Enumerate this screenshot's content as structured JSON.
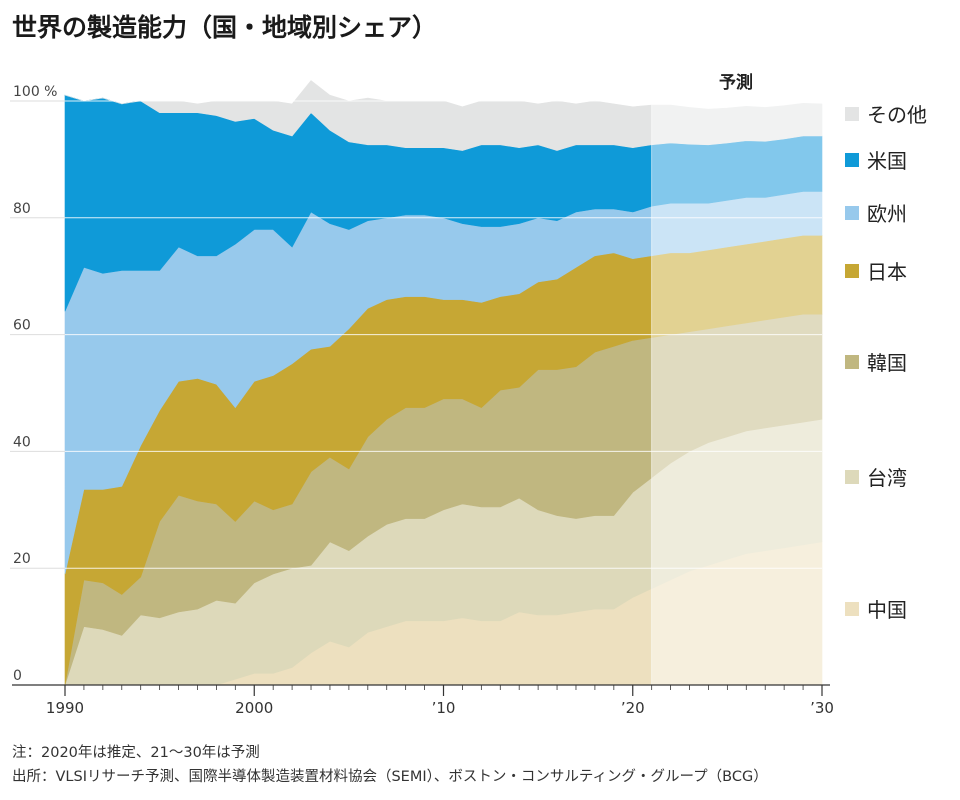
{
  "title": "世界の製造能力（国・地域別シェア）",
  "notes": {
    "note": "注：2020年は推定、21～30年は予測",
    "source": "出所：VLSIリサーチ予測、国際半導体製造装置材料協会（SEMI）、ボストン・コンサルティング・グループ（BCG）"
  },
  "chart_data": {
    "type": "area",
    "stacked": true,
    "title": "世界の製造能力（国・地域別シェア）",
    "ylim": [
      0,
      100
    ],
    "xlim": [
      1990,
      2030
    ],
    "y_ticks": [
      {
        "value": 0,
        "label": "0"
      },
      {
        "value": 20,
        "label": "20"
      },
      {
        "value": 40,
        "label": "40"
      },
      {
        "value": 60,
        "label": "60"
      },
      {
        "value": 80,
        "label": "80"
      },
      {
        "value": 100,
        "label": "100 %"
      }
    ],
    "x_ticks": [
      {
        "value": 1990,
        "label": "1990"
      },
      {
        "value": 2000,
        "label": "2000"
      },
      {
        "value": 2010,
        "label": "’10"
      },
      {
        "value": 2020,
        "label": "’20"
      },
      {
        "value": 2030,
        "label": "’30"
      }
    ],
    "forecast": {
      "label": "予測",
      "start": 2021,
      "end": 2030
    },
    "x": [
      1990,
      1991,
      1992,
      1993,
      1994,
      1995,
      1996,
      1997,
      1998,
      1999,
      2000,
      2001,
      2002,
      2003,
      2004,
      2005,
      2006,
      2007,
      2008,
      2009,
      2010,
      2011,
      2012,
      2013,
      2014,
      2015,
      2016,
      2017,
      2018,
      2019,
      2020,
      2021,
      2022,
      2023,
      2024,
      2025,
      2026,
      2027,
      2028,
      2029,
      2030
    ],
    "legend_position": "right",
    "series": [
      {
        "name": "中国",
        "color": "#ede0bf",
        "forecast_color": "#f6efdd",
        "values": [
          0,
          0,
          0,
          0,
          0,
          0,
          0,
          0,
          0,
          1,
          2,
          2,
          3,
          5.5,
          7.5,
          6.5,
          9,
          10,
          11,
          11,
          11,
          11.5,
          11,
          11,
          12.5,
          12,
          12,
          12.5,
          13,
          13,
          15,
          16.5,
          18,
          19.5,
          20.5,
          21.5,
          22.5,
          23,
          23.5,
          24,
          24.5
        ]
      },
      {
        "name": "台湾",
        "color": "#ddd9ba",
        "forecast_color": "#eeecdc",
        "values": [
          0,
          10,
          9.5,
          8.5,
          12,
          11.5,
          12.5,
          13,
          14.5,
          13,
          15.5,
          17,
          17,
          15,
          17,
          16.5,
          16.5,
          17.5,
          17.5,
          17.5,
          19,
          19.5,
          19.5,
          19.5,
          19.5,
          18,
          17,
          16,
          16,
          16,
          18,
          19,
          20,
          20.5,
          21,
          21,
          21,
          21,
          21,
          21,
          21
        ]
      },
      {
        "name": "韓国",
        "color": "#c0b780",
        "forecast_color": "#e0dbc0",
        "values": [
          0,
          8,
          8,
          7,
          6.5,
          16.5,
          20,
          18.5,
          16.5,
          14,
          14,
          11,
          11,
          16,
          14.5,
          14,
          17,
          18,
          19,
          19,
          19,
          18,
          17,
          20,
          19,
          24,
          25,
          26,
          28,
          29,
          26,
          24,
          22,
          20.5,
          19.5,
          19,
          18.5,
          18.5,
          18.5,
          18.5,
          18
        ]
      },
      {
        "name": "日本",
        "color": "#c6a734",
        "forecast_color": "#e2d292",
        "values": [
          19,
          15.5,
          16,
          18.5,
          22.5,
          19,
          19.5,
          21,
          20.5,
          19.5,
          20.5,
          23,
          24,
          21,
          19,
          24,
          22,
          20.5,
          19,
          19,
          17,
          17,
          18,
          16,
          16,
          15,
          15.5,
          17,
          16.5,
          16,
          14,
          14,
          14,
          13.5,
          13.5,
          13.5,
          13.5,
          13.5,
          13.5,
          13.5,
          13.5
        ]
      },
      {
        "name": "欧州",
        "color": "#97c9ec",
        "forecast_color": "#cbe4f6",
        "values": [
          45,
          38,
          37,
          37,
          30,
          24,
          23,
          21,
          22,
          28,
          26,
          25,
          20,
          23.5,
          21,
          17,
          15,
          14,
          14,
          14,
          14,
          13,
          13,
          12,
          12,
          11,
          10,
          9.5,
          8,
          7.5,
          8,
          8.5,
          8.5,
          8.5,
          8,
          8,
          8,
          7.5,
          7.5,
          7.5,
          7.5
        ]
      },
      {
        "name": "米国",
        "color": "#0f9ad8",
        "forecast_color": "#82c8ec",
        "values": [
          37,
          28.5,
          30,
          28.5,
          29,
          27,
          23,
          24.5,
          24,
          21,
          19,
          17,
          19,
          17,
          16,
          15,
          13,
          12.5,
          11.5,
          11.5,
          12,
          12.5,
          14,
          14,
          13,
          12.5,
          12,
          11.5,
          11,
          11,
          11,
          10.5,
          10.3,
          10.1,
          10,
          9.8,
          9.7,
          9.6,
          9.5,
          9.5,
          9.5
        ]
      },
      {
        "name": "その他",
        "color": "#e3e4e4",
        "forecast_color": "#f1f2f2",
        "values": [
          0,
          0,
          0,
          0,
          0,
          2,
          2,
          1.5,
          2.5,
          3.5,
          3,
          5,
          5.5,
          5.5,
          6,
          7,
          8,
          7.5,
          8,
          8,
          8,
          7.5,
          7.5,
          7.5,
          8,
          7,
          8.5,
          7,
          7.5,
          7,
          7,
          6.8,
          6.5,
          6.3,
          6.1,
          6,
          5.9,
          5.8,
          5.7,
          5.6,
          5.5
        ]
      }
    ]
  }
}
